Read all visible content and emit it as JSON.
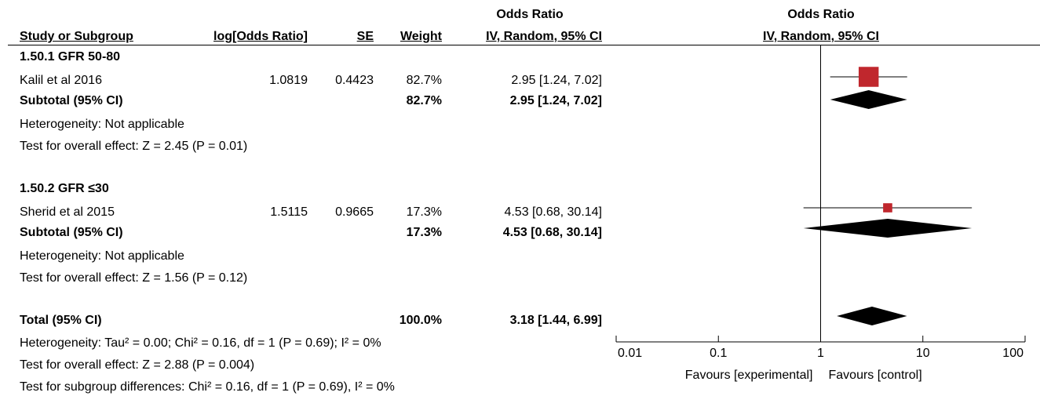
{
  "header": {
    "col_study": "Study or Subgroup",
    "col_logor": "log[Odds Ratio]",
    "col_se": "SE",
    "col_weight": "Weight",
    "col_or_title": "Odds Ratio",
    "col_or_method": "IV, Random, 95% CI",
    "plot_title": "Odds Ratio",
    "plot_method": "IV, Random, 95% CI"
  },
  "subgroups": [
    {
      "title": "1.50.1 GFR 50-80",
      "study": {
        "name": "Kalil et al 2016",
        "logor": "1.0819",
        "se": "0.4423",
        "weight": "82.7%",
        "ci": "2.95 [1.24, 7.02]"
      },
      "subtotal": {
        "label": "Subtotal (95% CI)",
        "weight": "82.7%",
        "ci": "2.95 [1.24, 7.02]"
      },
      "heterogeneity": "Heterogeneity: Not applicable",
      "overall": "Test for overall effect: Z = 2.45 (P = 0.01)"
    },
    {
      "title": "1.50.2 GFR ≤30",
      "study": {
        "name": "Sherid et al 2015",
        "logor": "1.5115",
        "se": "0.9665",
        "weight": "17.3%",
        "ci": "4.53 [0.68, 30.14]"
      },
      "subtotal": {
        "label": "Subtotal (95% CI)",
        "weight": "17.3%",
        "ci": "4.53 [0.68, 30.14]"
      },
      "heterogeneity": "Heterogeneity: Not applicable",
      "overall": "Test for overall effect: Z = 1.56 (P = 0.12)"
    }
  ],
  "total": {
    "label": "Total (95% CI)",
    "weight": "100.0%",
    "ci": "3.18 [1.44, 6.99]",
    "heterogeneity": "Heterogeneity: Tau² = 0.00; Chi² = 0.16, df = 1 (P = 0.69); I² = 0%",
    "overall": "Test for overall effect: Z = 2.88 (P = 0.004)",
    "subgroup_diff": "Test for subgroup differences: Chi² = 0.16, df = 1 (P = 0.69), I² = 0%"
  },
  "axis": {
    "favours_left": "Favours [experimental]",
    "favours_right": "Favours [control]"
  },
  "chart_data": {
    "type": "scatter",
    "scale": "log",
    "xlim": [
      0.01,
      100
    ],
    "ticks": [
      {
        "value": 0.01,
        "label": "0.01"
      },
      {
        "value": 0.1,
        "label": "0.1"
      },
      {
        "value": 1,
        "label": "1"
      },
      {
        "value": 10,
        "label": "10"
      },
      {
        "value": 100,
        "label": "100"
      }
    ],
    "null_line": 1,
    "marker_color": "#c0272d",
    "studies": [
      {
        "name": "Kalil et al 2016",
        "or": 2.95,
        "lo": 1.24,
        "hi": 7.02,
        "weight": 82.7
      },
      {
        "name": "Sherid et al 2015",
        "or": 4.53,
        "lo": 0.68,
        "hi": 30.14,
        "weight": 17.3
      }
    ],
    "diamonds": [
      {
        "label": "Subtotal (95% CI)",
        "or": 2.95,
        "lo": 1.24,
        "hi": 7.02
      },
      {
        "label": "Subtotal (95% CI)",
        "or": 4.53,
        "lo": 0.68,
        "hi": 30.14
      },
      {
        "label": "Total (95% CI)",
        "or": 3.18,
        "lo": 1.44,
        "hi": 6.99
      }
    ]
  }
}
